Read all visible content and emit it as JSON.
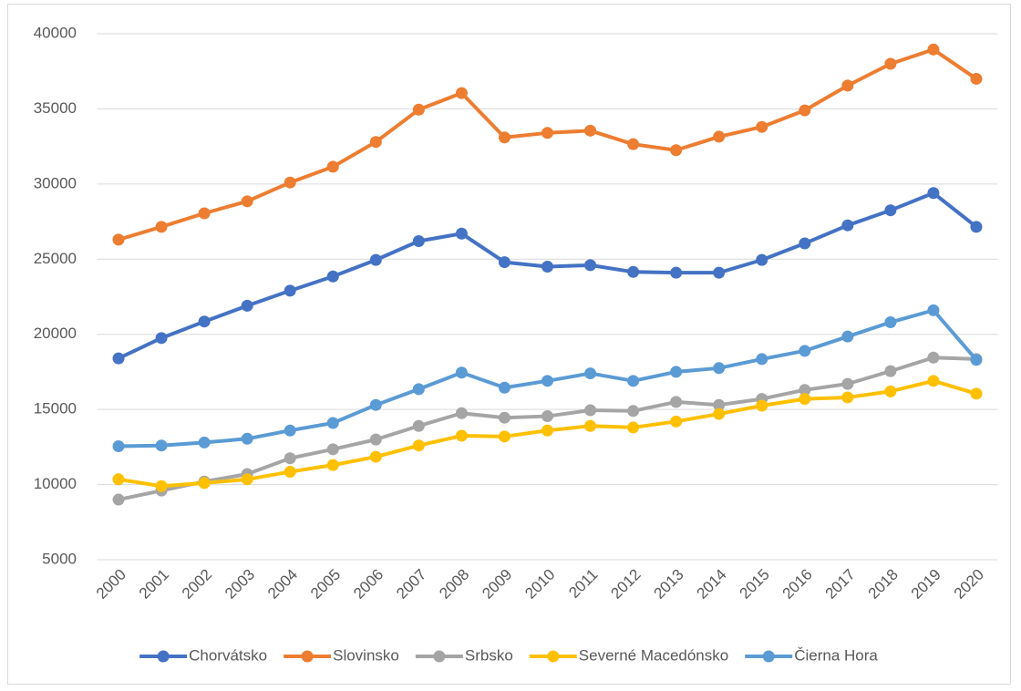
{
  "chart_data": {
    "type": "line",
    "categories": [
      "2000",
      "2001",
      "2002",
      "2003",
      "2004",
      "2005",
      "2006",
      "2007",
      "2008",
      "2009",
      "2010",
      "2011",
      "2012",
      "2013",
      "2014",
      "2015",
      "2016",
      "2017",
      "2018",
      "2019",
      "2020"
    ],
    "series": [
      {
        "name": "Chorvátsko",
        "color": "#4472c4",
        "values": [
          18400,
          19750,
          20850,
          21900,
          22900,
          23850,
          24950,
          26200,
          26700,
          24800,
          24500,
          24600,
          24150,
          24100,
          24100,
          24950,
          26050,
          27250,
          28250,
          29400,
          27150
        ]
      },
      {
        "name": "Slovinsko",
        "color": "#ed7d31",
        "values": [
          26300,
          27150,
          28050,
          28850,
          30100,
          31150,
          32800,
          34950,
          36050,
          33100,
          33400,
          33550,
          32650,
          32250,
          33150,
          33800,
          34900,
          36550,
          38000,
          38950,
          37000
        ]
      },
      {
        "name": "Srbsko",
        "color": "#a5a5a5",
        "values": [
          9000,
          9600,
          10200,
          10700,
          11750,
          12350,
          13000,
          13900,
          14750,
          14450,
          14550,
          14950,
          14900,
          15500,
          15300,
          15700,
          16300,
          16700,
          17550,
          18450,
          18350
        ]
      },
      {
        "name": "Severné Macedónsko",
        "color": "#ffc000",
        "values": [
          10350,
          9900,
          10100,
          10350,
          10850,
          11300,
          11850,
          12600,
          13250,
          13200,
          13600,
          13900,
          13800,
          14200,
          14700,
          15250,
          15700,
          15800,
          16200,
          16900,
          16050
        ]
      },
      {
        "name": "Čierna Hora",
        "color": "#5b9bd5",
        "values": [
          12550,
          12600,
          12800,
          13050,
          13600,
          14100,
          15300,
          16350,
          17450,
          16450,
          16900,
          17400,
          16900,
          17500,
          17750,
          18350,
          18900,
          19850,
          20800,
          21600,
          18300
        ]
      }
    ],
    "ylim": [
      5000,
      40000
    ],
    "yticks": [
      5000,
      10000,
      15000,
      20000,
      25000,
      30000,
      35000,
      40000
    ],
    "grid": true,
    "legend": "bottom"
  }
}
